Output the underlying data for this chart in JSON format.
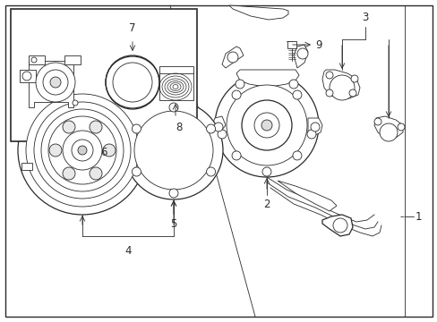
{
  "bg_color": "#ffffff",
  "line_color": "#2a2a2a",
  "fig_width": 4.89,
  "fig_height": 3.6,
  "dpi": 100,
  "label_fontsize": 8.5
}
